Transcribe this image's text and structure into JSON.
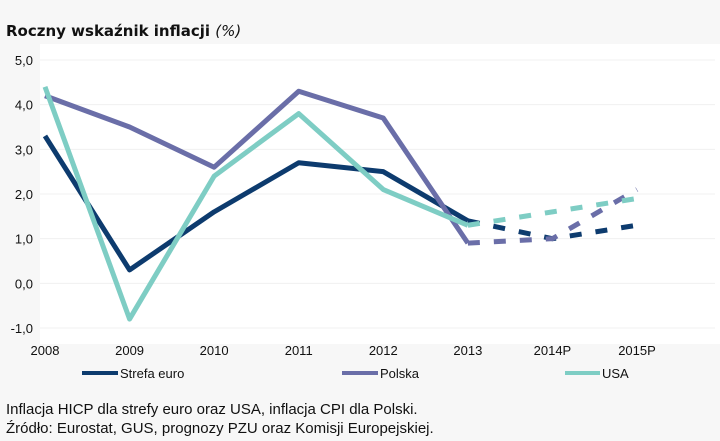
{
  "chart_data": {
    "type": "line",
    "title": "Roczny wskaźnik inflacji",
    "title_unit": "(%)",
    "categories": [
      "2008",
      "2009",
      "2010",
      "2011",
      "2012",
      "2013",
      "2014P",
      "2015P"
    ],
    "ylim": [
      -1.0,
      5.0
    ],
    "yticks": [
      "5,0",
      "4,0",
      "3,0",
      "2,0",
      "1,0",
      "0,0",
      "-1,0"
    ],
    "ytick_values": [
      5,
      4,
      3,
      2,
      1,
      0,
      -1
    ],
    "grid": true,
    "forecast_from_index": 5,
    "legend_position": "bottom",
    "series": [
      {
        "name": "Strefa euro",
        "color": "#0d3b6e",
        "values": [
          3.3,
          0.3,
          1.6,
          2.7,
          2.5,
          1.4,
          1.0,
          1.3
        ]
      },
      {
        "name": "Polska",
        "color": "#6a6ea8",
        "values": [
          4.2,
          3.5,
          2.6,
          4.3,
          3.7,
          0.9,
          1.0,
          2.1
        ]
      },
      {
        "name": "USA",
        "color": "#7ecdc4",
        "values": [
          4.4,
          -0.8,
          2.4,
          3.8,
          2.1,
          1.3,
          1.6,
          1.9
        ]
      }
    ]
  },
  "note": {
    "line1": "Inflacja HICP dla strefy euro oraz USA, inflacja CPI dla Polski.",
    "line2": "Źródło: Eurostat, GUS, prognozy PZU oraz Komisji Europejskiej."
  }
}
